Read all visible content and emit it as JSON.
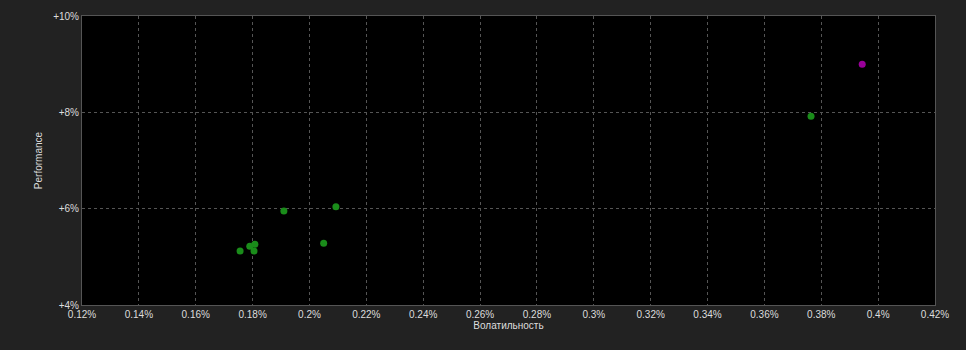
{
  "chart_data": {
    "type": "scatter",
    "x_label": "Волатильность",
    "y_label": "Performance",
    "series": [
      {
        "color": "#1a8c1a",
        "marker": "circle",
        "x": [
          0.1756,
          0.179,
          0.1808,
          0.1805,
          0.191,
          0.205,
          0.2093,
          0.3764
        ],
        "values": [
          5.12,
          5.22,
          5.26,
          5.12,
          5.95,
          5.28,
          6.04,
          7.92
        ]
      },
      {
        "color": "#990099",
        "marker": "circle",
        "x": [
          0.3944
        ],
        "values": [
          9.0
        ]
      }
    ],
    "xlim": [
      0.12,
      0.42
    ],
    "xticks": [
      {
        "value": 0.12,
        "label": "0.12%"
      },
      {
        "value": 0.14,
        "label": "0.14%"
      },
      {
        "value": 0.16,
        "label": "0.16%"
      },
      {
        "value": 0.18,
        "label": "0.18%"
      },
      {
        "value": 0.2,
        "label": "0.2%"
      },
      {
        "value": 0.22,
        "label": "0.22%"
      },
      {
        "value": 0.24,
        "label": "0.24%"
      },
      {
        "value": 0.26,
        "label": "0.26%"
      },
      {
        "value": 0.28,
        "label": "0.28%"
      },
      {
        "value": 0.3,
        "label": "0.3%"
      },
      {
        "value": 0.32,
        "label": "0.32%"
      },
      {
        "value": 0.34,
        "label": "0.34%"
      },
      {
        "value": 0.36,
        "label": "0.36%"
      },
      {
        "value": 0.38,
        "label": "0.38%"
      },
      {
        "value": 0.4,
        "label": "0.4%"
      },
      {
        "value": 0.42,
        "label": "0.42%"
      }
    ],
    "ylim": [
      4,
      10
    ],
    "yticks": [
      {
        "value": 4,
        "label": "+4%"
      },
      {
        "value": 6,
        "label": "+6%"
      },
      {
        "value": 8,
        "label": "+8%"
      },
      {
        "value": 10,
        "label": "+10%"
      }
    ],
    "grid": true
  }
}
